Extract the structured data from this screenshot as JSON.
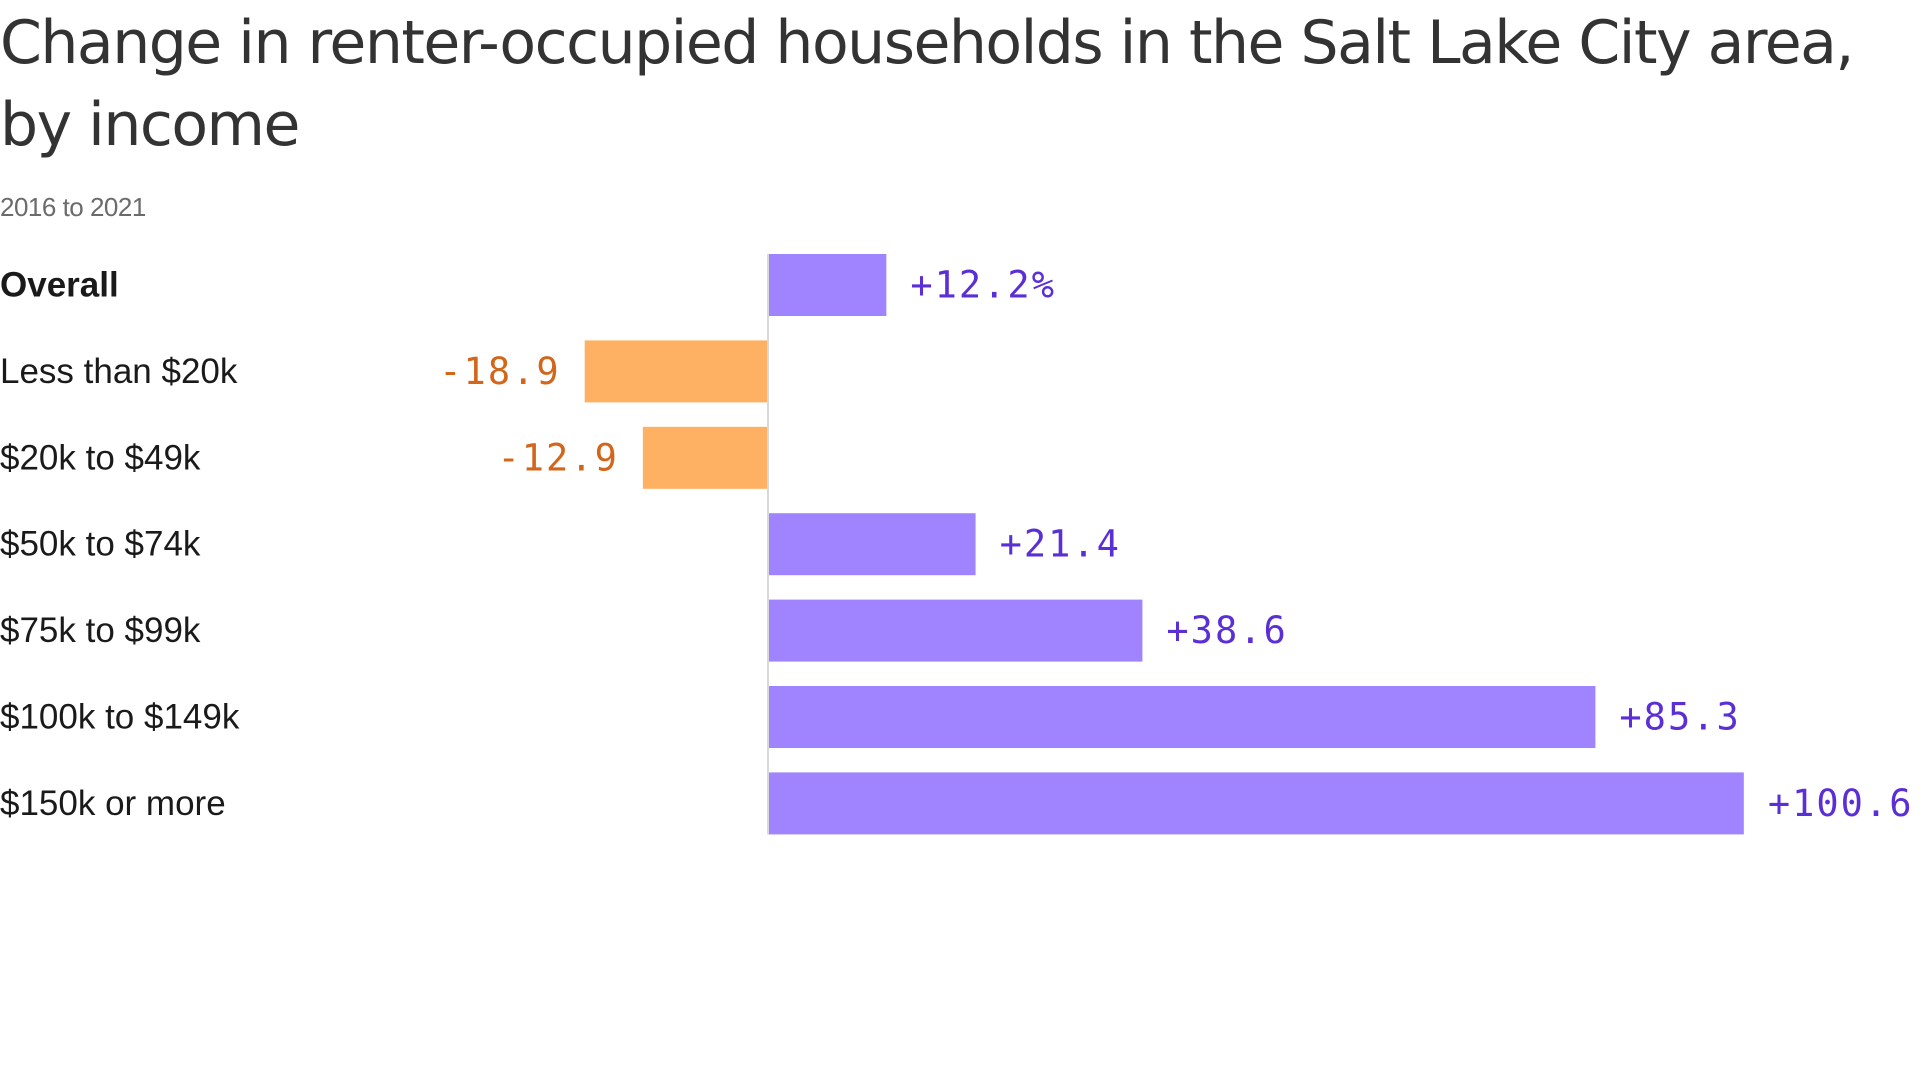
{
  "title": "Change in renter-occupied households in the Salt Lake City area, by income",
  "subtitle": "2016 to 2021",
  "colors": {
    "positive_bar": "#a084ff",
    "positive_text": "#5b2fd6",
    "negative_bar": "#ffb163",
    "negative_text": "#d2661b",
    "axis": "#d9d9d9"
  },
  "chart_data": {
    "type": "bar",
    "orientation": "horizontal",
    "categories": [
      "Overall",
      "Less than $20k",
      "$20k to $49k",
      "$50k to $74k",
      "$75k to $99k",
      "$100k to $149k",
      "$150k or more"
    ],
    "values": [
      12.2,
      -18.9,
      -12.9,
      21.4,
      38.6,
      85.3,
      100.6
    ],
    "value_labels": [
      "+12.2%",
      "-18.9",
      "-12.9",
      "+21.4",
      "+38.6",
      "+85.3",
      "+100.6"
    ],
    "bold_categories": [
      "Overall"
    ],
    "title": "Change in renter-occupied households in the Salt Lake City area, by income",
    "subtitle": "2016 to 2021",
    "xlabel": "",
    "ylabel": "",
    "xlim": [
      -18.9,
      100.6
    ],
    "grid": false,
    "legend": "none"
  }
}
